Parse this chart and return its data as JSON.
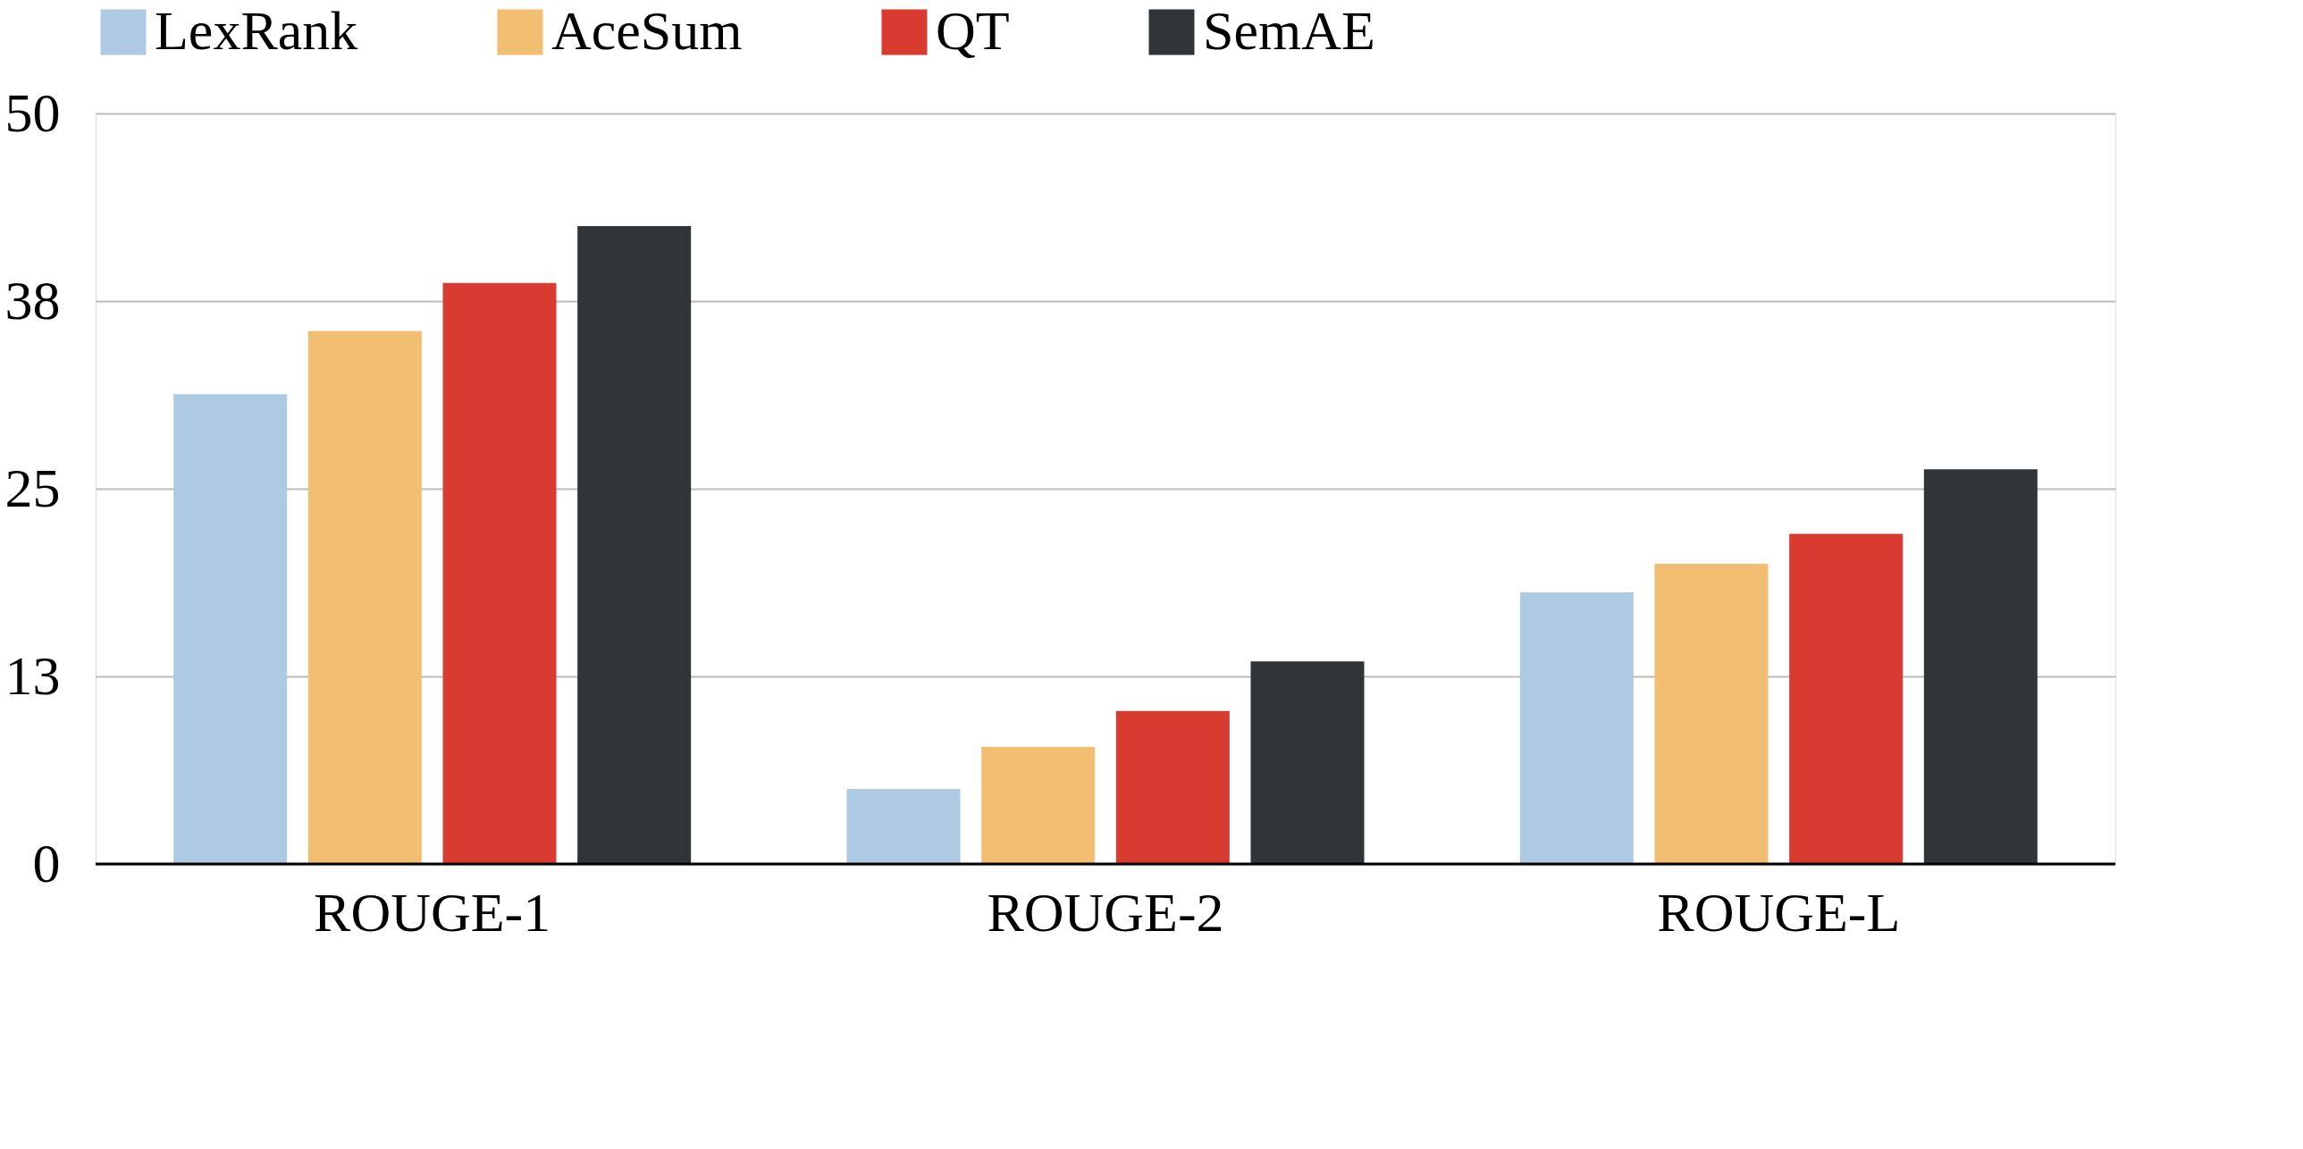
{
  "chart_data": {
    "type": "bar",
    "categories": [
      "ROUGE-1",
      "ROUGE-2",
      "ROUGE-L"
    ],
    "series": [
      {
        "name": "LexRank",
        "color": "#aecae3",
        "values": [
          31.3,
          5.0,
          18.1
        ]
      },
      {
        "name": "AceSum",
        "color": "#f2bf72",
        "values": [
          35.5,
          7.8,
          20.0
        ]
      },
      {
        "name": "QT",
        "color": "#d93b30",
        "values": [
          38.7,
          10.2,
          22.0
        ]
      },
      {
        "name": "SemAE",
        "color": "#2f3538",
        "values": [
          42.5,
          13.5,
          26.3
        ]
      }
    ],
    "ylim": [
      0,
      50
    ],
    "yticks": [
      0,
      {
        "value": 12.5,
        "label": "13"
      },
      25,
      {
        "value": 37.5,
        "label": "38"
      },
      50
    ],
    "grid": "y",
    "legend": "top"
  }
}
